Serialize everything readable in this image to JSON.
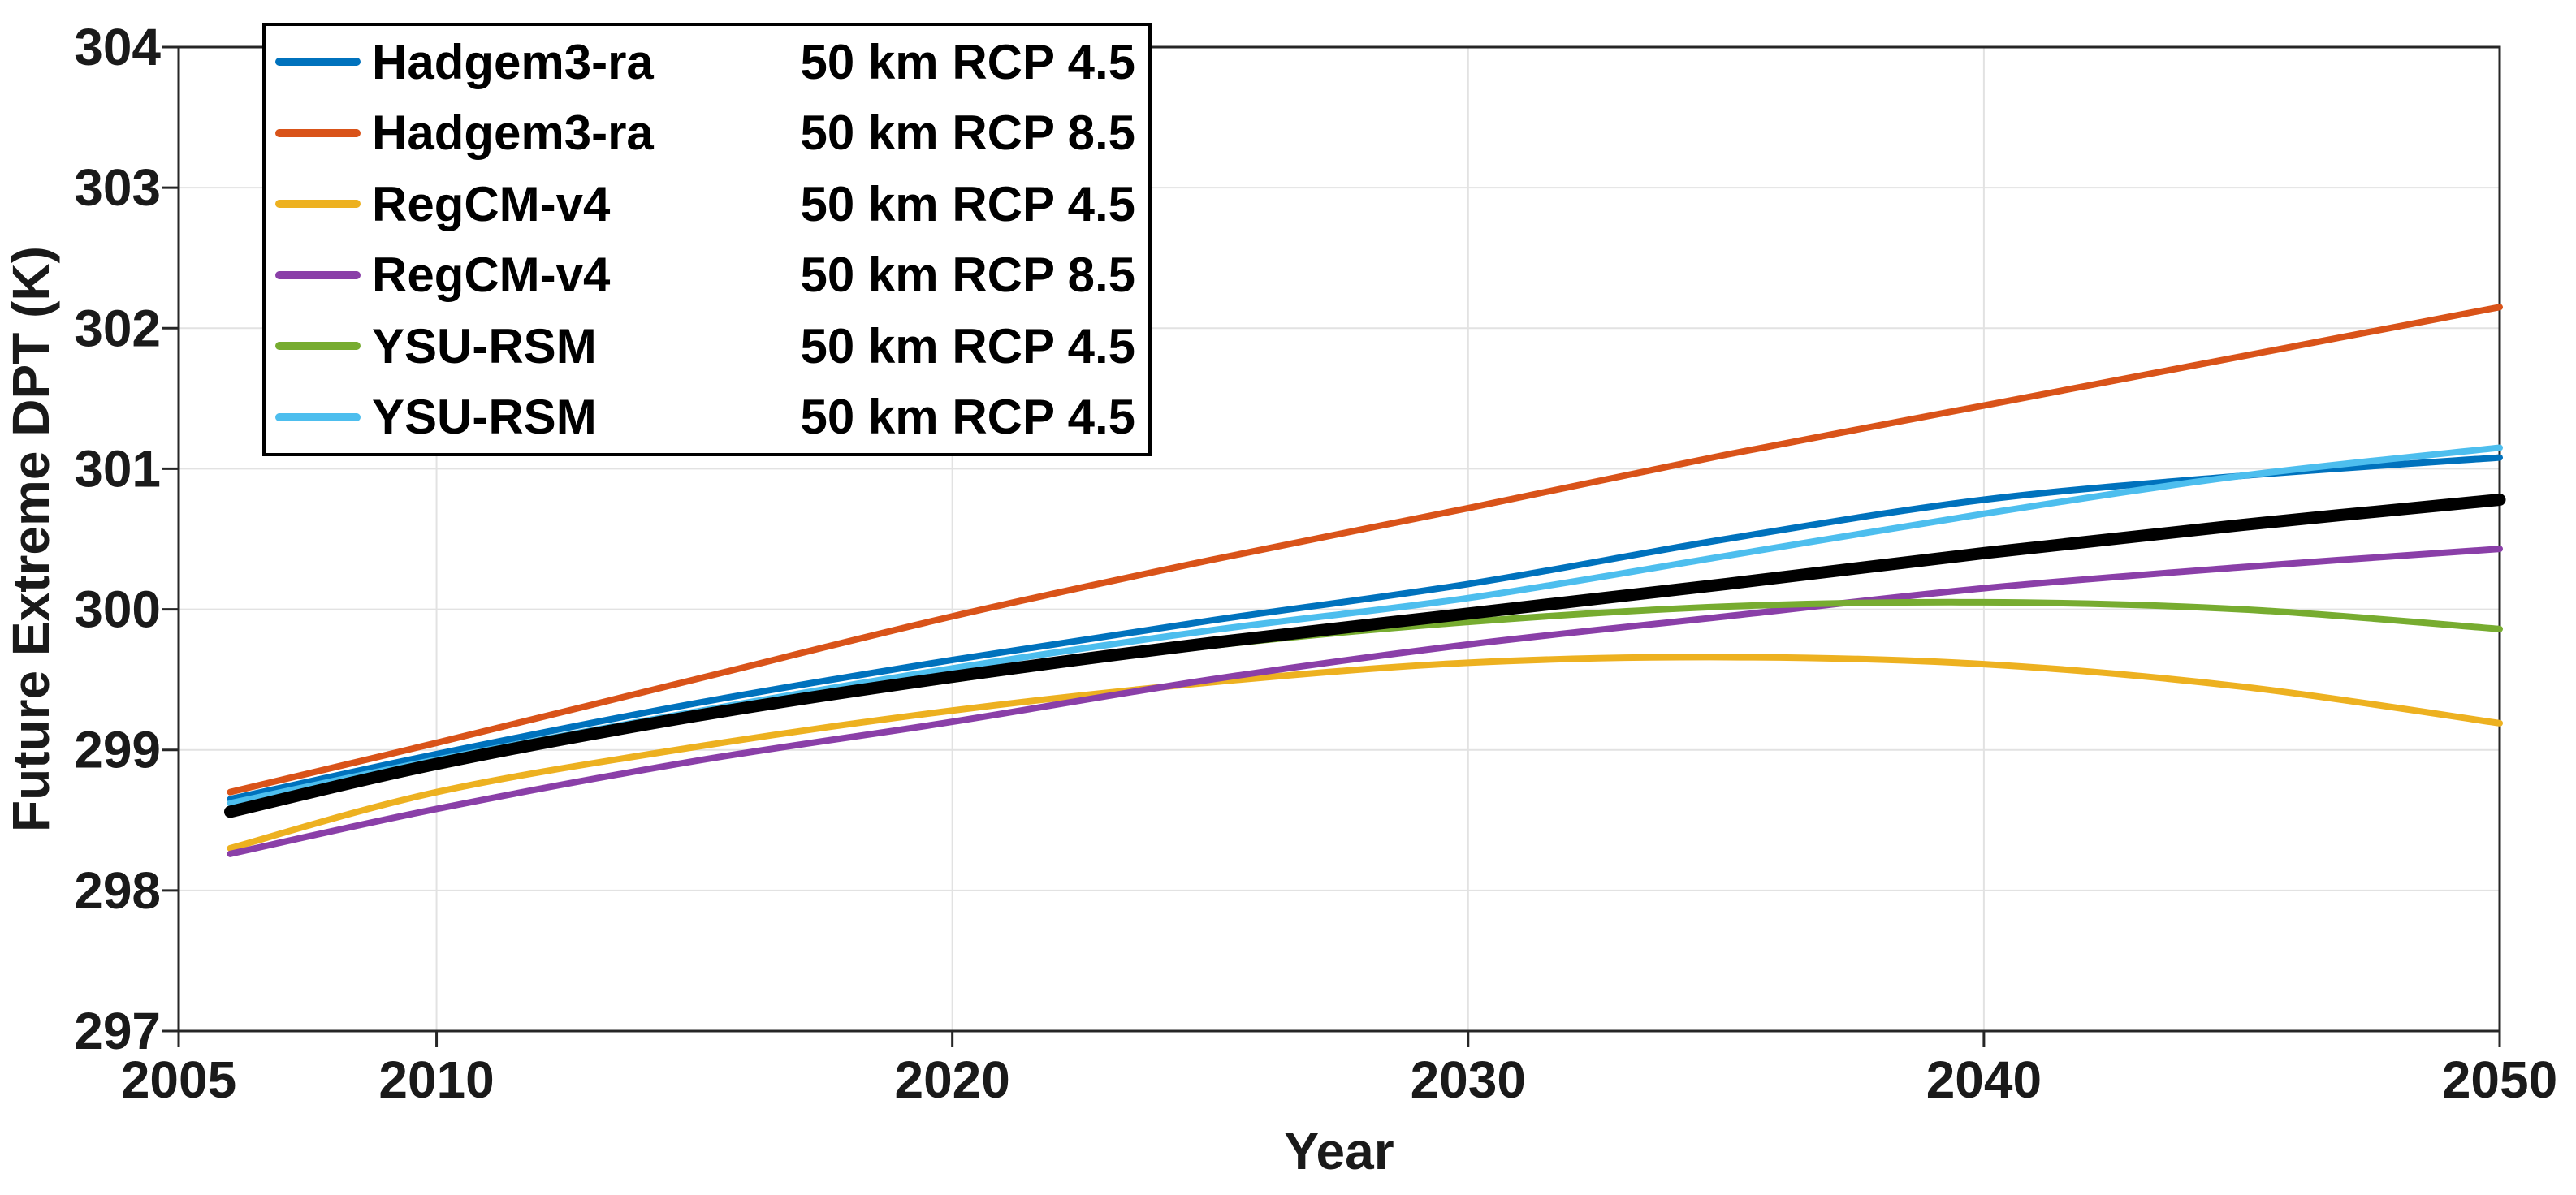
{
  "figure": {
    "xlabel": "Year",
    "ylabel": "Future Extreme DPT (K)"
  },
  "colors": {
    "background": "#ffffff",
    "axis": "#262626",
    "grid": "#e2e2e2",
    "tick_text": "#1a1a1a",
    "legend_border": "#000000",
    "mean_line": "#000000"
  },
  "chart_data": {
    "type": "line",
    "title": "",
    "xlabel": "Year",
    "ylabel": "Future Extreme DPT (K)",
    "xlim": [
      2005,
      2050
    ],
    "ylim": [
      297,
      304
    ],
    "xticks": [
      2005,
      2010,
      2020,
      2030,
      2040,
      2050
    ],
    "yticks": [
      297,
      298,
      299,
      300,
      301,
      302,
      303,
      304
    ],
    "grid": true,
    "legend_position": "top-left",
    "x": [
      2006,
      2010,
      2015,
      2020,
      2025,
      2030,
      2035,
      2040,
      2045,
      2050
    ],
    "series": [
      {
        "name": "Hadgem3-ra",
        "detail": "50 km RCP 4.5",
        "color": "#0072BD",
        "width": 8,
        "in_legend": true,
        "values": [
          298.65,
          298.97,
          299.33,
          299.64,
          299.92,
          300.18,
          300.5,
          300.78,
          300.95,
          301.08
        ]
      },
      {
        "name": "Hadgem3-ra",
        "detail": "50 km RCP 8.5",
        "color": "#D95319",
        "width": 8,
        "in_legend": true,
        "values": [
          298.7,
          299.05,
          299.5,
          299.95,
          300.35,
          300.72,
          301.1,
          301.45,
          301.8,
          302.15
        ]
      },
      {
        "name": "RegCM-v4",
        "detail": "50 km RCP 4.5",
        "color": "#EDB120",
        "width": 8,
        "in_legend": true,
        "values": [
          298.3,
          298.7,
          299.02,
          299.28,
          299.48,
          299.62,
          299.66,
          299.61,
          299.45,
          299.19
        ]
      },
      {
        "name": "RegCM-v4",
        "detail": "50 km RCP 8.5",
        "color": "#8A3FA8",
        "width": 8,
        "in_legend": true,
        "values": [
          298.26,
          298.58,
          298.92,
          299.2,
          299.5,
          299.75,
          299.95,
          300.15,
          300.3,
          300.43
        ]
      },
      {
        "name": "YSU-RSM",
        "detail": "50 km RCP 4.5",
        "color": "#77AC30",
        "width": 8,
        "in_legend": true,
        "values": [
          298.55,
          298.88,
          299.23,
          299.5,
          299.74,
          299.91,
          300.02,
          300.05,
          300.0,
          299.86
        ]
      },
      {
        "name": "YSU-RSM",
        "detail": "50 km RCP 4.5",
        "color": "#4DBEEE",
        "width": 8,
        "in_legend": true,
        "values": [
          298.62,
          298.93,
          299.27,
          299.58,
          299.85,
          300.08,
          300.38,
          300.68,
          300.95,
          301.15
        ]
      },
      {
        "name": "",
        "detail": "",
        "color": "#000000",
        "width": 15,
        "in_legend": false,
        "values": [
          298.56,
          298.9,
          299.24,
          299.52,
          299.76,
          299.97,
          300.18,
          300.4,
          300.6,
          300.78
        ]
      }
    ]
  }
}
